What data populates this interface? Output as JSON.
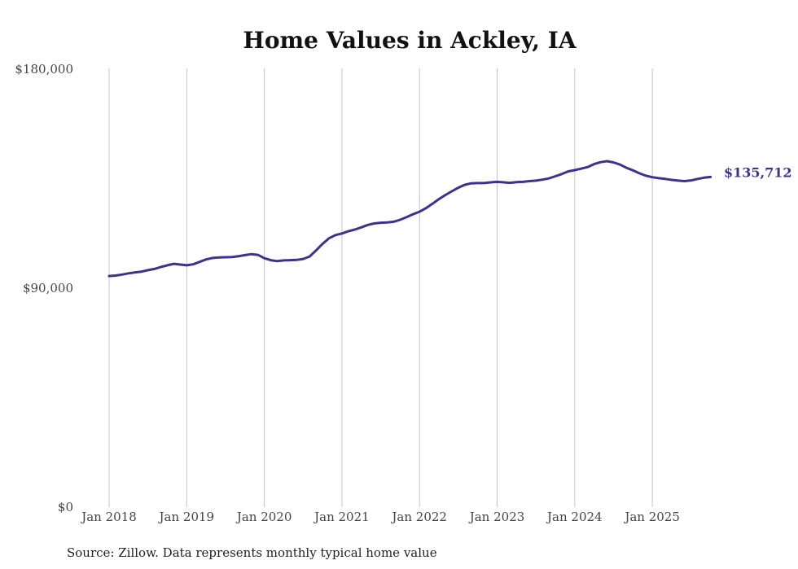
{
  "chart_data": {
    "type": "line",
    "title": "Home Values in Ackley, IA",
    "source_note": "Source: Zillow. Data represents monthly typical home value",
    "y_ticks": [
      {
        "value": 0,
        "label": "$0"
      },
      {
        "value": 90000,
        "label": "$90,000"
      },
      {
        "value": 180000,
        "label": "$180,000"
      }
    ],
    "ylim": [
      0,
      180000
    ],
    "x_ticks": [
      {
        "date": "2018-01",
        "label": "Jan 2018"
      },
      {
        "date": "2019-01",
        "label": "Jan 2019"
      },
      {
        "date": "2020-01",
        "label": "Jan 2020"
      },
      {
        "date": "2021-01",
        "label": "Jan 2021"
      },
      {
        "date": "2022-01",
        "label": "Jan 2022"
      },
      {
        "date": "2023-01",
        "label": "Jan 2023"
      },
      {
        "date": "2024-01",
        "label": "Jan 2024"
      },
      {
        "date": "2025-01",
        "label": "Jan 2025"
      }
    ],
    "xlim": [
      "2018-01",
      "2025-10"
    ],
    "grid": "vertical",
    "line_color": "#3a3391",
    "end_label": "$135,712",
    "series": [
      {
        "x": [
          "2018-01",
          "2018-02",
          "2018-03",
          "2018-04",
          "2018-05",
          "2018-06",
          "2018-07",
          "2018-08",
          "2018-09",
          "2018-10",
          "2018-11",
          "2018-12",
          "2019-01",
          "2019-02",
          "2019-03",
          "2019-04",
          "2019-05",
          "2019-06",
          "2019-07",
          "2019-08",
          "2019-09",
          "2019-10",
          "2019-11",
          "2019-12",
          "2020-01",
          "2020-02",
          "2020-03",
          "2020-04",
          "2020-05",
          "2020-06",
          "2020-07",
          "2020-08",
          "2020-09",
          "2020-10",
          "2020-11",
          "2020-12",
          "2021-01",
          "2021-02",
          "2021-03",
          "2021-04",
          "2021-05",
          "2021-06",
          "2021-07",
          "2021-08",
          "2021-09",
          "2021-10",
          "2021-11",
          "2021-12",
          "2022-01",
          "2022-02",
          "2022-03",
          "2022-04",
          "2022-05",
          "2022-06",
          "2022-07",
          "2022-08",
          "2022-09",
          "2022-10",
          "2022-11",
          "2022-12",
          "2023-01",
          "2023-02",
          "2023-03",
          "2023-04",
          "2023-05",
          "2023-06",
          "2023-07",
          "2023-08",
          "2023-09",
          "2023-10",
          "2023-11",
          "2023-12",
          "2024-01",
          "2024-02",
          "2024-03",
          "2024-04",
          "2024-05",
          "2024-06",
          "2024-07",
          "2024-08",
          "2024-09",
          "2024-10",
          "2024-11",
          "2024-12",
          "2025-01",
          "2025-02",
          "2025-03",
          "2025-04",
          "2025-05",
          "2025-06",
          "2025-07",
          "2025-08",
          "2025-09",
          "2025-10"
        ],
        "values": [
          95000,
          95200,
          95600,
          96100,
          96500,
          96800,
          97400,
          97900,
          98700,
          99400,
          100000,
          99700,
          99400,
          99800,
          100800,
          101800,
          102400,
          102600,
          102700,
          102800,
          103100,
          103600,
          104000,
          103700,
          102300,
          101500,
          101100,
          101400,
          101500,
          101600,
          102000,
          103000,
          105500,
          108200,
          110500,
          111800,
          112500,
          113400,
          114100,
          115000,
          116000,
          116600,
          116900,
          117000,
          117300,
          118100,
          119200,
          120400,
          121400,
          122900,
          124700,
          126600,
          128300,
          129800,
          131300,
          132500,
          133100,
          133200,
          133200,
          133500,
          133700,
          133500,
          133300,
          133600,
          133700,
          134000,
          134200,
          134600,
          135100,
          136000,
          136900,
          138000,
          138500,
          139100,
          139800,
          141000,
          141800,
          142200,
          141700,
          140800,
          139500,
          138400,
          137200,
          136200,
          135600,
          135200,
          134900,
          134500,
          134200,
          134000,
          134300,
          134900,
          135400,
          135712
        ]
      }
    ]
  }
}
